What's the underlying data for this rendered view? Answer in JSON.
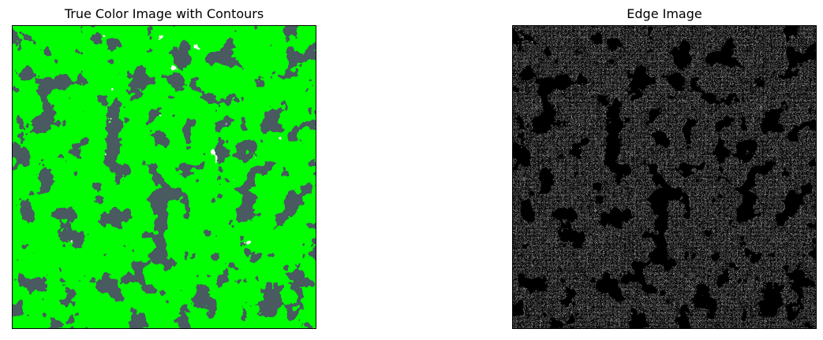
{
  "figure": {
    "panels": [
      {
        "title": "True Color Image with Contours",
        "image": "satellite-clouds-with-green-contours",
        "colors": {
          "background": "#4a5a60",
          "cloud": "#ffffff",
          "contour": "#00ff00"
        }
      },
      {
        "title": "Edge Image",
        "image": "edge-detection-map",
        "colors": {
          "background": "#000000",
          "edges": "#7a7a7a"
        }
      }
    ]
  }
}
